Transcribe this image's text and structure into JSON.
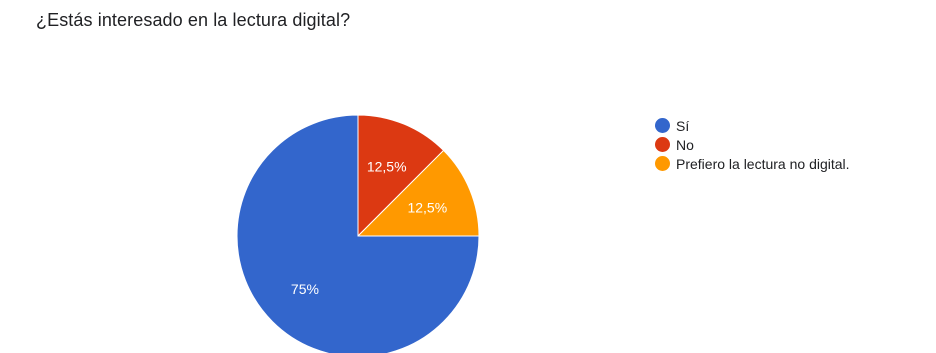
{
  "question": {
    "title": "¿Estás interesado en la lectura digital?"
  },
  "chart_data": {
    "type": "pie",
    "title": "",
    "slices": [
      {
        "label": "Sí",
        "value": 75,
        "display": "75%",
        "color": "#3366cc"
      },
      {
        "label": "No",
        "value": 12.5,
        "display": "12,5%",
        "color": "#dc3912"
      },
      {
        "label": "Prefiero la lectura no digital.",
        "value": 12.5,
        "display": "12,5%",
        "color": "#ff9900"
      }
    ],
    "legend_position": "right",
    "slice_order": [
      "No",
      "Prefiero la lectura no digital.",
      "Sí"
    ]
  }
}
